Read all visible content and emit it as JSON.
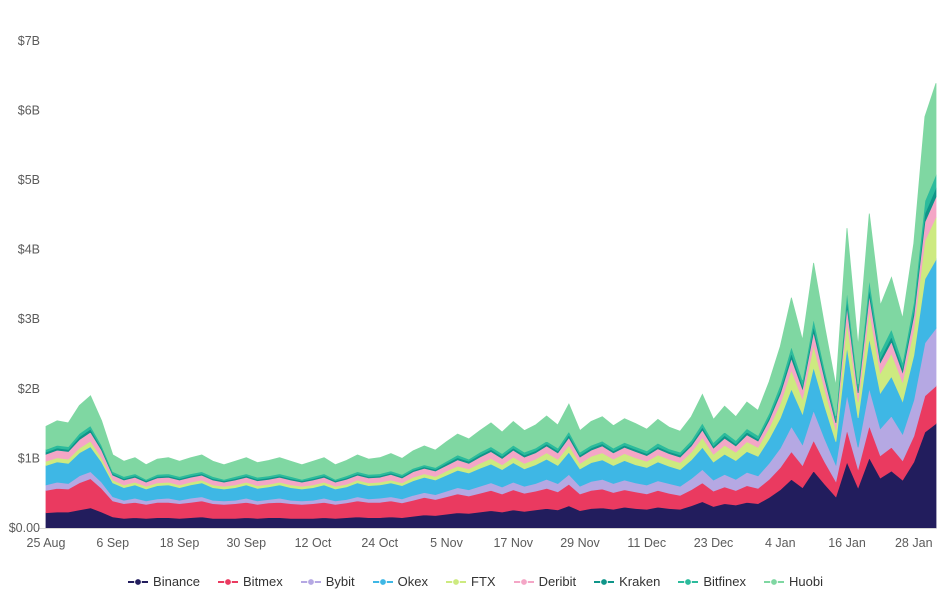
{
  "chart_data": {
    "type": "area",
    "stacked": true,
    "title": "",
    "xlabel": "",
    "ylabel": "",
    "grid": false,
    "legend_position": "bottom",
    "ylim": [
      0,
      7.3
    ],
    "axis_color": "#d6d6d6",
    "y_ticks": [
      {
        "value": 0,
        "label": "$0.00"
      },
      {
        "value": 1,
        "label": "$1B"
      },
      {
        "value": 2,
        "label": "$2B"
      },
      {
        "value": 3,
        "label": "$3B"
      },
      {
        "value": 4,
        "label": "$4B"
      },
      {
        "value": 5,
        "label": "$5B"
      },
      {
        "value": 6,
        "label": "$6B"
      },
      {
        "value": 7,
        "label": "$7B"
      }
    ],
    "x_ticks": [
      {
        "index": 0,
        "label": "25 Aug"
      },
      {
        "index": 6,
        "label": "6 Sep"
      },
      {
        "index": 12,
        "label": "18 Sep"
      },
      {
        "index": 18,
        "label": "30 Sep"
      },
      {
        "index": 24,
        "label": "12 Oct"
      },
      {
        "index": 30,
        "label": "24 Oct"
      },
      {
        "index": 36,
        "label": "5 Nov"
      },
      {
        "index": 42,
        "label": "17 Nov"
      },
      {
        "index": 48,
        "label": "29 Nov"
      },
      {
        "index": 54,
        "label": "11 Dec"
      },
      {
        "index": 60,
        "label": "23 Dec"
      },
      {
        "index": 66,
        "label": "4 Jan"
      },
      {
        "index": 72,
        "label": "16 Jan"
      },
      {
        "index": 78,
        "label": "28 Jan"
      }
    ],
    "n_points": 81,
    "units": "billions USD",
    "series": [
      {
        "name": "Binance",
        "color": "#221d5d",
        "values": [
          0.22,
          0.23,
          0.23,
          0.26,
          0.29,
          0.23,
          0.16,
          0.14,
          0.15,
          0.14,
          0.15,
          0.15,
          0.14,
          0.15,
          0.16,
          0.14,
          0.14,
          0.14,
          0.15,
          0.14,
          0.15,
          0.15,
          0.14,
          0.14,
          0.14,
          0.15,
          0.14,
          0.15,
          0.16,
          0.15,
          0.15,
          0.16,
          0.15,
          0.17,
          0.19,
          0.18,
          0.2,
          0.22,
          0.21,
          0.23,
          0.25,
          0.23,
          0.26,
          0.24,
          0.26,
          0.28,
          0.26,
          0.32,
          0.25,
          0.28,
          0.29,
          0.27,
          0.3,
          0.28,
          0.27,
          0.3,
          0.28,
          0.27,
          0.32,
          0.38,
          0.31,
          0.35,
          0.33,
          0.37,
          0.35,
          0.44,
          0.55,
          0.7,
          0.58,
          0.82,
          0.63,
          0.45,
          0.95,
          0.58,
          1.01,
          0.72,
          0.82,
          0.69,
          0.95,
          1.38,
          1.5
        ]
      },
      {
        "name": "Bitmex",
        "color": "#ea3a60",
        "values": [
          0.32,
          0.34,
          0.33,
          0.39,
          0.42,
          0.34,
          0.23,
          0.21,
          0.22,
          0.2,
          0.22,
          0.22,
          0.21,
          0.22,
          0.23,
          0.21,
          0.2,
          0.21,
          0.22,
          0.2,
          0.21,
          0.22,
          0.21,
          0.2,
          0.21,
          0.22,
          0.2,
          0.21,
          0.23,
          0.22,
          0.22,
          0.23,
          0.21,
          0.23,
          0.25,
          0.23,
          0.25,
          0.27,
          0.25,
          0.27,
          0.29,
          0.26,
          0.29,
          0.26,
          0.27,
          0.29,
          0.26,
          0.31,
          0.24,
          0.26,
          0.27,
          0.24,
          0.25,
          0.24,
          0.22,
          0.24,
          0.22,
          0.2,
          0.23,
          0.27,
          0.22,
          0.24,
          0.21,
          0.24,
          0.22,
          0.26,
          0.32,
          0.4,
          0.32,
          0.44,
          0.32,
          0.22,
          0.46,
          0.27,
          0.46,
          0.32,
          0.34,
          0.28,
          0.37,
          0.52,
          0.54
        ]
      },
      {
        "name": "Bybit",
        "color": "#b5a8e3",
        "values": [
          0.08,
          0.09,
          0.08,
          0.1,
          0.1,
          0.09,
          0.06,
          0.05,
          0.06,
          0.05,
          0.05,
          0.06,
          0.05,
          0.06,
          0.06,
          0.05,
          0.05,
          0.05,
          0.06,
          0.05,
          0.05,
          0.06,
          0.05,
          0.05,
          0.05,
          0.06,
          0.05,
          0.05,
          0.06,
          0.05,
          0.06,
          0.06,
          0.06,
          0.07,
          0.07,
          0.07,
          0.08,
          0.09,
          0.09,
          0.1,
          0.11,
          0.1,
          0.11,
          0.1,
          0.11,
          0.13,
          0.12,
          0.14,
          0.11,
          0.13,
          0.14,
          0.13,
          0.14,
          0.13,
          0.13,
          0.14,
          0.14,
          0.13,
          0.16,
          0.19,
          0.16,
          0.18,
          0.16,
          0.19,
          0.18,
          0.23,
          0.28,
          0.36,
          0.3,
          0.43,
          0.33,
          0.24,
          0.51,
          0.31,
          0.54,
          0.39,
          0.45,
          0.38,
          0.52,
          0.76,
          0.83
        ]
      },
      {
        "name": "Okex",
        "color": "#3eb7e5",
        "values": [
          0.28,
          0.29,
          0.29,
          0.33,
          0.36,
          0.29,
          0.2,
          0.18,
          0.19,
          0.17,
          0.19,
          0.19,
          0.18,
          0.19,
          0.2,
          0.18,
          0.17,
          0.18,
          0.19,
          0.18,
          0.18,
          0.19,
          0.18,
          0.17,
          0.18,
          0.19,
          0.17,
          0.18,
          0.2,
          0.19,
          0.19,
          0.2,
          0.19,
          0.21,
          0.22,
          0.21,
          0.23,
          0.25,
          0.24,
          0.26,
          0.27,
          0.25,
          0.28,
          0.25,
          0.27,
          0.29,
          0.26,
          0.32,
          0.25,
          0.27,
          0.28,
          0.26,
          0.28,
          0.26,
          0.25,
          0.27,
          0.25,
          0.24,
          0.27,
          0.32,
          0.26,
          0.29,
          0.27,
          0.3,
          0.28,
          0.35,
          0.43,
          0.54,
          0.44,
          0.62,
          0.47,
          0.33,
          0.69,
          0.42,
          0.72,
          0.51,
          0.57,
          0.47,
          0.64,
          0.92,
          0.99
        ]
      },
      {
        "name": "FTX",
        "color": "#cdea80",
        "values": [
          0.06,
          0.06,
          0.06,
          0.07,
          0.08,
          0.06,
          0.04,
          0.04,
          0.04,
          0.04,
          0.04,
          0.04,
          0.04,
          0.04,
          0.04,
          0.04,
          0.04,
          0.04,
          0.04,
          0.04,
          0.04,
          0.04,
          0.04,
          0.04,
          0.04,
          0.04,
          0.04,
          0.04,
          0.04,
          0.04,
          0.04,
          0.04,
          0.04,
          0.05,
          0.05,
          0.05,
          0.06,
          0.06,
          0.06,
          0.07,
          0.08,
          0.07,
          0.08,
          0.08,
          0.08,
          0.09,
          0.09,
          0.1,
          0.08,
          0.09,
          0.1,
          0.09,
          0.1,
          0.1,
          0.09,
          0.1,
          0.1,
          0.1,
          0.11,
          0.14,
          0.11,
          0.13,
          0.12,
          0.14,
          0.13,
          0.16,
          0.21,
          0.27,
          0.22,
          0.32,
          0.24,
          0.17,
          0.37,
          0.23,
          0.4,
          0.29,
          0.33,
          0.28,
          0.38,
          0.55,
          0.61
        ]
      },
      {
        "name": "Deribit",
        "color": "#f4a6c6",
        "values": [
          0.1,
          0.11,
          0.11,
          0.12,
          0.13,
          0.11,
          0.07,
          0.07,
          0.07,
          0.06,
          0.07,
          0.07,
          0.07,
          0.07,
          0.07,
          0.07,
          0.06,
          0.07,
          0.07,
          0.07,
          0.07,
          0.07,
          0.07,
          0.06,
          0.07,
          0.07,
          0.06,
          0.07,
          0.07,
          0.07,
          0.07,
          0.08,
          0.07,
          0.08,
          0.08,
          0.08,
          0.08,
          0.09,
          0.08,
          0.09,
          0.1,
          0.09,
          0.1,
          0.09,
          0.09,
          0.1,
          0.09,
          0.11,
          0.09,
          0.09,
          0.1,
          0.09,
          0.09,
          0.09,
          0.08,
          0.09,
          0.08,
          0.08,
          0.09,
          0.11,
          0.09,
          0.1,
          0.09,
          0.1,
          0.09,
          0.11,
          0.14,
          0.17,
          0.14,
          0.19,
          0.15,
          0.1,
          0.21,
          0.13,
          0.22,
          0.15,
          0.17,
          0.14,
          0.19,
          0.27,
          0.29
        ]
      },
      {
        "name": "Kraken",
        "color": "#0f9589",
        "values": [
          0.03,
          0.03,
          0.03,
          0.04,
          0.04,
          0.03,
          0.02,
          0.02,
          0.02,
          0.02,
          0.02,
          0.02,
          0.02,
          0.02,
          0.02,
          0.02,
          0.02,
          0.02,
          0.02,
          0.02,
          0.02,
          0.02,
          0.02,
          0.02,
          0.02,
          0.02,
          0.02,
          0.02,
          0.02,
          0.02,
          0.02,
          0.02,
          0.02,
          0.02,
          0.02,
          0.02,
          0.03,
          0.03,
          0.03,
          0.03,
          0.03,
          0.03,
          0.03,
          0.03,
          0.03,
          0.03,
          0.03,
          0.04,
          0.03,
          0.03,
          0.03,
          0.03,
          0.03,
          0.03,
          0.03,
          0.03,
          0.03,
          0.03,
          0.03,
          0.04,
          0.03,
          0.04,
          0.03,
          0.04,
          0.03,
          0.04,
          0.05,
          0.07,
          0.05,
          0.08,
          0.06,
          0.04,
          0.09,
          0.05,
          0.09,
          0.06,
          0.07,
          0.06,
          0.08,
          0.12,
          0.13
        ]
      },
      {
        "name": "Bitfinex",
        "color": "#2cbb9c",
        "values": [
          0.04,
          0.04,
          0.04,
          0.05,
          0.05,
          0.04,
          0.03,
          0.03,
          0.03,
          0.02,
          0.03,
          0.03,
          0.03,
          0.03,
          0.03,
          0.03,
          0.02,
          0.03,
          0.03,
          0.03,
          0.03,
          0.03,
          0.03,
          0.02,
          0.03,
          0.03,
          0.02,
          0.03,
          0.03,
          0.03,
          0.03,
          0.03,
          0.03,
          0.03,
          0.03,
          0.03,
          0.03,
          0.04,
          0.03,
          0.04,
          0.04,
          0.04,
          0.04,
          0.04,
          0.04,
          0.04,
          0.04,
          0.05,
          0.04,
          0.04,
          0.04,
          0.04,
          0.04,
          0.04,
          0.04,
          0.05,
          0.04,
          0.04,
          0.05,
          0.06,
          0.05,
          0.05,
          0.05,
          0.05,
          0.05,
          0.06,
          0.08,
          0.1,
          0.08,
          0.11,
          0.08,
          0.06,
          0.13,
          0.08,
          0.14,
          0.1,
          0.11,
          0.09,
          0.12,
          0.18,
          0.19
        ]
      },
      {
        "name": "Huobi",
        "color": "#7fd7a2",
        "values": [
          0.33,
          0.35,
          0.34,
          0.4,
          0.43,
          0.35,
          0.24,
          0.22,
          0.23,
          0.21,
          0.22,
          0.23,
          0.22,
          0.23,
          0.24,
          0.22,
          0.21,
          0.22,
          0.23,
          0.21,
          0.22,
          0.23,
          0.22,
          0.21,
          0.22,
          0.23,
          0.21,
          0.22,
          0.24,
          0.22,
          0.23,
          0.25,
          0.23,
          0.25,
          0.27,
          0.25,
          0.28,
          0.3,
          0.29,
          0.31,
          0.34,
          0.31,
          0.34,
          0.31,
          0.33,
          0.36,
          0.33,
          0.39,
          0.31,
          0.34,
          0.35,
          0.32,
          0.34,
          0.33,
          0.31,
          0.34,
          0.31,
          0.3,
          0.34,
          0.41,
          0.33,
          0.37,
          0.34,
          0.38,
          0.36,
          0.45,
          0.55,
          0.7,
          0.57,
          0.8,
          0.61,
          0.43,
          0.9,
          0.54,
          0.94,
          0.66,
          0.74,
          0.62,
          0.84,
          1.21,
          1.31
        ]
      }
    ]
  }
}
